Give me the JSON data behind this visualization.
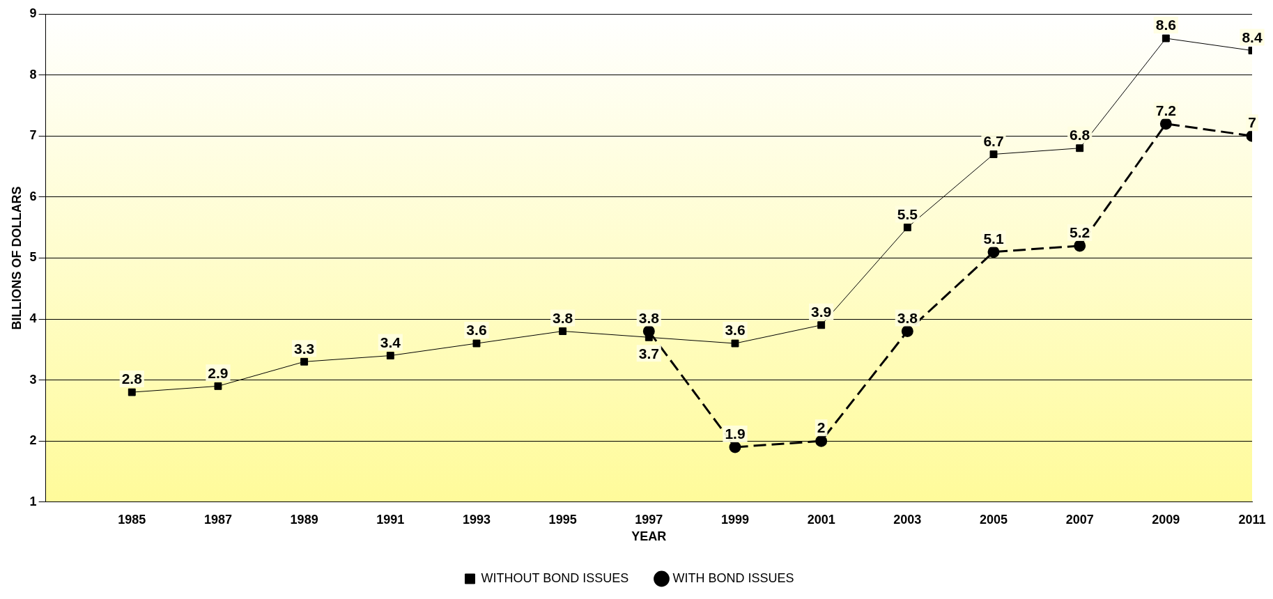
{
  "chart_data": {
    "type": "line",
    "xlabel": "YEAR",
    "ylabel": "BILLIONS OF DOLLARS",
    "x": [
      1985,
      1987,
      1989,
      1991,
      1993,
      1995,
      1997,
      1999,
      2001,
      2003,
      2005,
      2007,
      2009,
      2011
    ],
    "xlim": [
      1983,
      2011
    ],
    "xticks": [
      {
        "value": 1983,
        "label": null
      },
      1985,
      1987,
      1989,
      1991,
      1993,
      1995,
      1997,
      1999,
      2001,
      2003,
      2005,
      2007,
      2009,
      2011
    ],
    "ylim": [
      1,
      9
    ],
    "yticks": [
      1,
      2,
      3,
      4,
      5,
      6,
      7,
      8,
      9
    ],
    "grid": "y",
    "legend": "bottom",
    "data_labels": true,
    "series": [
      {
        "name": "WITHOUT BOND ISSUES",
        "color": "#000000",
        "marker": "square",
        "line_style": "solid",
        "values": [
          2.8,
          2.9,
          3.3,
          3.4,
          3.6,
          3.8,
          3.7,
          3.6,
          3.9,
          5.5,
          6.7,
          6.8,
          8.6,
          8.4
        ]
      },
      {
        "name": "WITH BOND ISSUES",
        "color": "#000000",
        "marker": "circle",
        "line_style": "dashed",
        "values": [
          null,
          null,
          null,
          null,
          null,
          null,
          3.8,
          1.9,
          2,
          3.8,
          5.1,
          5.2,
          7.2,
          7
        ]
      }
    ]
  }
}
